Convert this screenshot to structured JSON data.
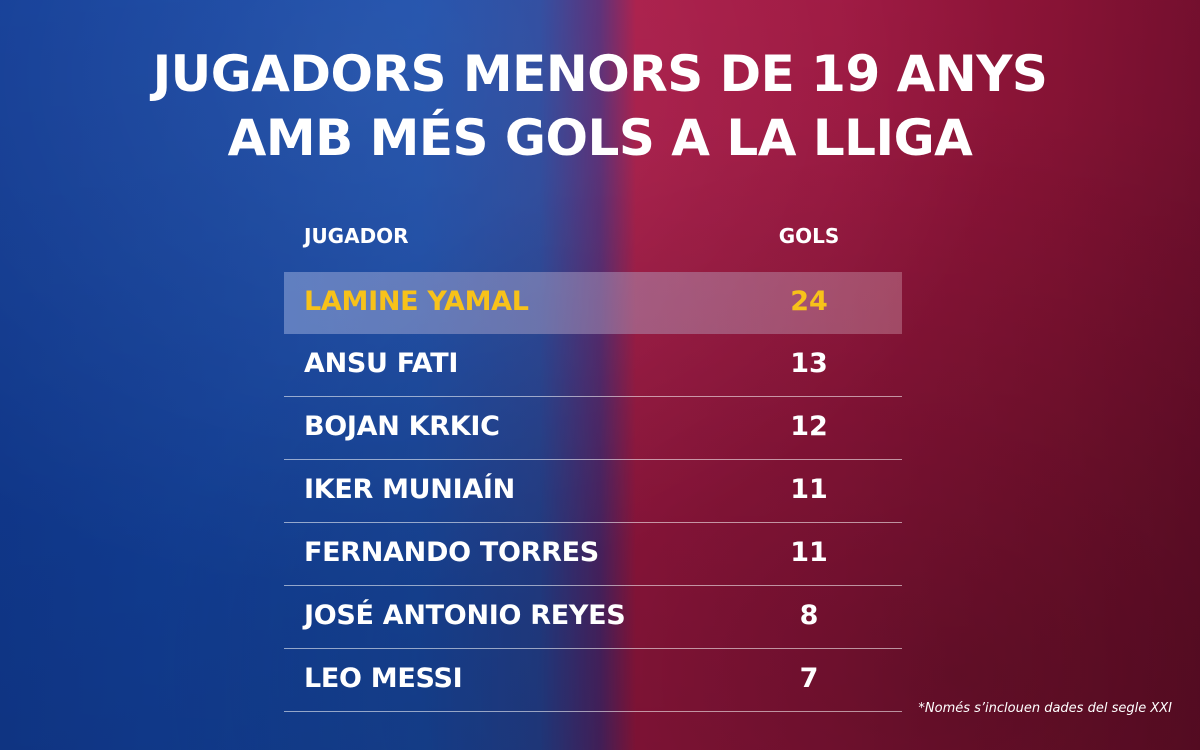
{
  "title_line1": "JUGADORS MENORS DE 19 ANYS",
  "title_line2": "AMB MÉS GOLS A LA LLIGA",
  "footnote": "*Només s’inclouen dades del segle XXI",
  "colors": {
    "highlight_text": "#f7c21a",
    "blue_side": "#1446a8",
    "red_side": "#a61844"
  },
  "chart_data": {
    "type": "table",
    "columns": [
      "JUGADOR",
      "GOLS"
    ],
    "rows": [
      {
        "player": "LAMINE YAMAL",
        "goals": 24,
        "highlighted": true
      },
      {
        "player": "ANSU FATI",
        "goals": 13,
        "highlighted": false
      },
      {
        "player": "BOJAN KRKIC",
        "goals": 12,
        "highlighted": false
      },
      {
        "player": "IKER MUNIAÍN",
        "goals": 11,
        "highlighted": false
      },
      {
        "player": "FERNANDO TORRES",
        "goals": 11,
        "highlighted": false
      },
      {
        "player": "JOSÉ ANTONIO REYES",
        "goals": 8,
        "highlighted": false
      },
      {
        "player": "LEO MESSI",
        "goals": 7,
        "highlighted": false
      }
    ]
  }
}
